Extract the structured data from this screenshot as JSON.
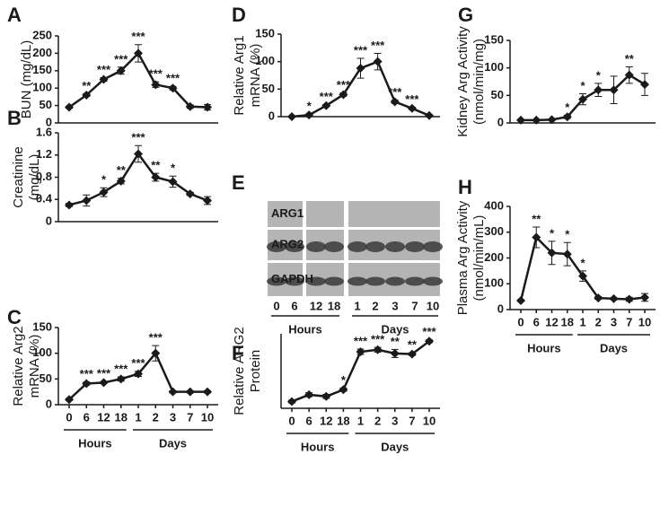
{
  "chart_data": [
    {
      "type": "line",
      "panel": "A",
      "ylabel": [
        "BUN (mg/dL)"
      ],
      "ylim": [
        0,
        250
      ],
      "yticks": [
        0,
        50,
        100,
        150,
        200,
        250
      ],
      "values": [
        45,
        80,
        125,
        150,
        200,
        110,
        100,
        47,
        45
      ],
      "errors": [
        3,
        4,
        5,
        10,
        25,
        8,
        5,
        5,
        8
      ],
      "annotations": [
        null,
        "**",
        "***",
        "***",
        "***",
        "***",
        "***",
        null,
        null
      ],
      "color": "#1a1a1a"
    },
    {
      "type": "line",
      "panel": "B",
      "ylabel": [
        "Creatinine",
        "(mg/dL)"
      ],
      "ylim": [
        0,
        1.6
      ],
      "yticks": [
        0,
        0.4,
        0.8,
        1.2,
        1.6
      ],
      "values": [
        0.3,
        0.38,
        0.53,
        0.73,
        1.22,
        0.8,
        0.72,
        0.5,
        0.38
      ],
      "errors": [
        0.03,
        0.1,
        0.08,
        0.05,
        0.15,
        0.07,
        0.1,
        0.03,
        0.07
      ],
      "annotations": [
        null,
        null,
        "*",
        "**",
        "***",
        "**",
        "*",
        null,
        null
      ],
      "color": "#1a1a1a"
    },
    {
      "type": "line",
      "panel": "C",
      "ylabel": [
        "Relative Arg2",
        "mRNA (%)"
      ],
      "ylim": [
        0,
        150
      ],
      "yticks": [
        0,
        50,
        100,
        150
      ],
      "categories": [
        "0",
        "6",
        "12",
        "18",
        "1",
        "2",
        "3",
        "7",
        "10"
      ],
      "group_labels": [
        "Hours",
        "Days"
      ],
      "values": [
        10,
        41,
        43,
        50,
        60,
        100,
        25,
        25,
        25
      ],
      "errors": [
        2,
        3,
        2,
        4,
        5,
        15,
        2,
        2,
        2
      ],
      "annotations": [
        null,
        "***",
        "***",
        "***",
        "***",
        "***",
        null,
        null,
        null
      ],
      "color": "#1a1a1a"
    },
    {
      "type": "line",
      "panel": "D",
      "ylabel": [
        "Relative Arg1",
        "mRNA (%)"
      ],
      "ylim": [
        0,
        150
      ],
      "yticks": [
        0,
        50,
        100,
        150
      ],
      "values": [
        0,
        3,
        20,
        40,
        88,
        100,
        27,
        15,
        2
      ],
      "errors": [
        0,
        2,
        2,
        3,
        18,
        15,
        3,
        2,
        1
      ],
      "annotations": [
        null,
        "*",
        "***",
        "***",
        "***",
        "***",
        "***",
        "***",
        null
      ],
      "color": "#1a1a1a"
    },
    {
      "type": "line",
      "panel": "F",
      "ylabel": [
        "Relative ARG2",
        "Protein"
      ],
      "ylim": [
        0.8,
        3
      ],
      "categories": [
        "0",
        "6",
        "12",
        "18",
        "1",
        "2",
        "3",
        "7",
        "10"
      ],
      "group_labels": [
        "Hours",
        "Days"
      ],
      "values": [
        1.0,
        1.2,
        1.15,
        1.35,
        2.47,
        2.53,
        2.42,
        2.4,
        2.78
      ],
      "errors": [
        0.04,
        0.06,
        0.06,
        0.05,
        0.08,
        0.07,
        0.12,
        0.04,
        0.04
      ],
      "annotations": [
        null,
        null,
        null,
        "*",
        "***",
        "***",
        "**",
        "**",
        "***"
      ],
      "color": "#1a1a1a"
    },
    {
      "type": "line",
      "panel": "G",
      "ylabel": [
        "Kidney Arg Activity",
        "(nmol/min/mg)"
      ],
      "ylim": [
        0,
        150
      ],
      "yticks": [
        0,
        50,
        100,
        150
      ],
      "values": [
        5,
        5,
        6,
        11,
        43,
        60,
        60,
        87,
        70
      ],
      "errors": [
        1,
        1,
        1,
        3,
        10,
        12,
        25,
        15,
        20
      ],
      "annotations": [
        null,
        null,
        null,
        "*",
        "*",
        "*",
        null,
        "**",
        null
      ],
      "color": "#1a1a1a"
    },
    {
      "type": "line",
      "panel": "H",
      "ylabel": [
        "Plasma Arg Activity",
        "(nmol/min/mL)"
      ],
      "ylim": [
        0,
        400
      ],
      "yticks": [
        0,
        100,
        200,
        300,
        400
      ],
      "categories": [
        "0",
        "6",
        "12",
        "18",
        "1",
        "2",
        "3",
        "7",
        "10"
      ],
      "group_labels": [
        "Hours",
        "Days"
      ],
      "values": [
        35,
        280,
        220,
        215,
        130,
        45,
        42,
        40,
        47
      ],
      "errors": [
        3,
        40,
        45,
        45,
        20,
        5,
        4,
        8,
        15
      ],
      "annotations": [
        null,
        "**",
        "*",
        "*",
        "*",
        null,
        null,
        null,
        null
      ],
      "color": "#1a1a1a"
    }
  ],
  "blot": {
    "panel": "E",
    "rows": [
      "ARG1",
      "ARG2",
      "GAPDH"
    ],
    "lanes": [
      "0",
      "6",
      "12",
      "18",
      "1",
      "2",
      "3",
      "7",
      "10"
    ],
    "group_labels": [
      "Hours",
      "Days"
    ]
  }
}
